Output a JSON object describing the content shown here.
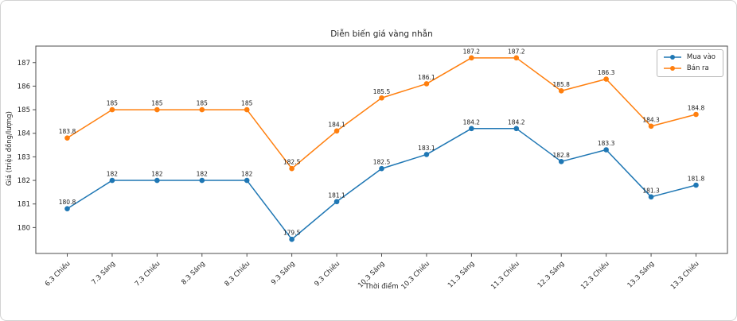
{
  "chart_data": {
    "type": "line",
    "title": "Diễn biến giá vàng nhẫn",
    "xlabel": "Thời điểm",
    "ylabel": "Giá (triệu đồng/lượng)",
    "categories": [
      "6.3 Chiều",
      "7.3 Sáng",
      "7.3 Chiều",
      "8.3 Sáng",
      "8.3 Chiều",
      "9.3 Sáng",
      "9.3 Chiều",
      "10.3 Sáng",
      "10.3 Chiều",
      "11.3 Sáng",
      "11.3 Chiều",
      "12.3 Sáng",
      "12.3 Chiều",
      "13.3 Sáng",
      "13.3 Chiều"
    ],
    "series": [
      {
        "name": "Mua vào",
        "color": "#1f77b4",
        "values": [
          180.8,
          182,
          182,
          182,
          182,
          179.5,
          181.1,
          182.5,
          183.1,
          184.2,
          184.2,
          182.8,
          183.3,
          181.3,
          181.8
        ]
      },
      {
        "name": "Bán ra",
        "color": "#ff7f0e",
        "values": [
          183.8,
          185,
          185,
          185,
          185,
          182.5,
          184.1,
          185.5,
          186.1,
          187.2,
          187.2,
          185.8,
          186.3,
          184.3,
          184.8
        ]
      }
    ],
    "yticks": [
      180,
      181,
      182,
      183,
      184,
      185,
      186,
      187
    ],
    "ylim": [
      178.9,
      187.7
    ],
    "grid": false,
    "marker": "circle",
    "point_labels": true,
    "legend_position": "upper right"
  }
}
